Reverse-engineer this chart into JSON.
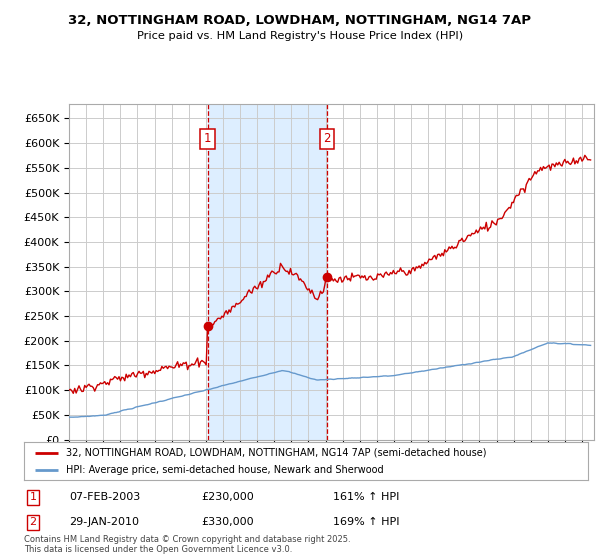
{
  "title1": "32, NOTTINGHAM ROAD, LOWDHAM, NOTTINGHAM, NG14 7AP",
  "title2": "Price paid vs. HM Land Registry's House Price Index (HPI)",
  "ylim": [
    0,
    680000
  ],
  "yticks": [
    0,
    50000,
    100000,
    150000,
    200000,
    250000,
    300000,
    350000,
    400000,
    450000,
    500000,
    550000,
    600000,
    650000
  ],
  "xlim_start": 1995.0,
  "xlim_end": 2025.7,
  "transaction1_date": 2003.1,
  "transaction1_price": 230000,
  "transaction1_label": "1",
  "transaction2_date": 2010.08,
  "transaction2_price": 330000,
  "transaction2_label": "2",
  "legend_entry1": "32, NOTTINGHAM ROAD, LOWDHAM, NOTTINGHAM, NG14 7AP (semi-detached house)",
  "legend_entry2": "HPI: Average price, semi-detached house, Newark and Sherwood",
  "table_row1": [
    "1",
    "07-FEB-2003",
    "£230,000",
    "161% ↑ HPI"
  ],
  "table_row2": [
    "2",
    "29-JAN-2010",
    "£330,000",
    "169% ↑ HPI"
  ],
  "footnote": "Contains HM Land Registry data © Crown copyright and database right 2025.\nThis data is licensed under the Open Government Licence v3.0.",
  "line_color_red": "#cc0000",
  "line_color_blue": "#6699cc",
  "shade_color": "#ddeeff",
  "background_color": "#ffffff",
  "grid_color": "#cccccc"
}
